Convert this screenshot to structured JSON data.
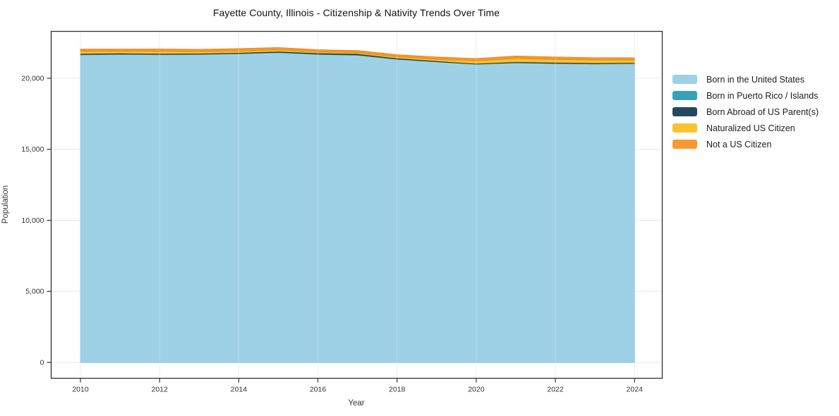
{
  "title": "Fayette County, Illinois - Citizenship & Nativity Trends Over Time",
  "chart_data": {
    "type": "area",
    "stacked": true,
    "title": "Fayette County, Illinois - Citizenship & Nativity Trends Over Time",
    "xlabel": "Year",
    "ylabel": "Population",
    "x": [
      2010,
      2011,
      2012,
      2013,
      2014,
      2015,
      2016,
      2017,
      2018,
      2019,
      2020,
      2021,
      2022,
      2023,
      2024
    ],
    "series": [
      {
        "name": "Born in the United States",
        "color": "#9ed0e6",
        "edge_color": "#85c1dd",
        "values": [
          21650,
          21690,
          21660,
          21680,
          21730,
          21810,
          21680,
          21630,
          21340,
          21160,
          20990,
          21090,
          21040,
          21010,
          21040
        ]
      },
      {
        "name": "Born in Puerto Rico / Islands",
        "color": "#35a2b8",
        "edge_color": "#2d91a5",
        "values": [
          30,
          25,
          25,
          20,
          20,
          25,
          30,
          25,
          20,
          15,
          10,
          15,
          15,
          15,
          10
        ]
      },
      {
        "name": "Born Abroad of US Parent(s)",
        "color": "#25495c",
        "edge_color": "#1d3c4c",
        "values": [
          60,
          55,
          60,
          55,
          55,
          65,
          70,
          80,
          65,
          55,
          45,
          55,
          60,
          55,
          50
        ]
      },
      {
        "name": "Naturalized US Citizen",
        "color": "#fdc32f",
        "edge_color": "#eab223",
        "values": [
          160,
          135,
          155,
          125,
          120,
          110,
          90,
          80,
          95,
          120,
          185,
          230,
          215,
          205,
          185
        ]
      },
      {
        "name": "Not a US Citizen",
        "color": "#f7992e",
        "edge_color": "#e58a22",
        "values": [
          150,
          145,
          160,
          150,
          155,
          150,
          140,
          130,
          130,
          145,
          160,
          170,
          165,
          160,
          155
        ]
      }
    ],
    "ytick_values": [
      0,
      5000,
      10000,
      15000,
      20000
    ],
    "ytick_labels": [
      "0",
      "5,000",
      "10,000",
      "15,000",
      "20,000"
    ],
    "xtick_values": [
      2010,
      2012,
      2014,
      2016,
      2018,
      2020,
      2022,
      2024
    ],
    "xtick_labels": [
      "2010",
      "2012",
      "2014",
      "2016",
      "2018",
      "2020",
      "2022",
      "2024"
    ],
    "xlim": [
      2009.26,
      2024.7
    ],
    "ylim": [
      -1117,
      23300
    ],
    "grid": true,
    "legend_position": "right",
    "background_color": "#ffffff",
    "grid_color": "#e8e8e8",
    "axis_color": "#333333",
    "tick_label_color": "#333333"
  }
}
